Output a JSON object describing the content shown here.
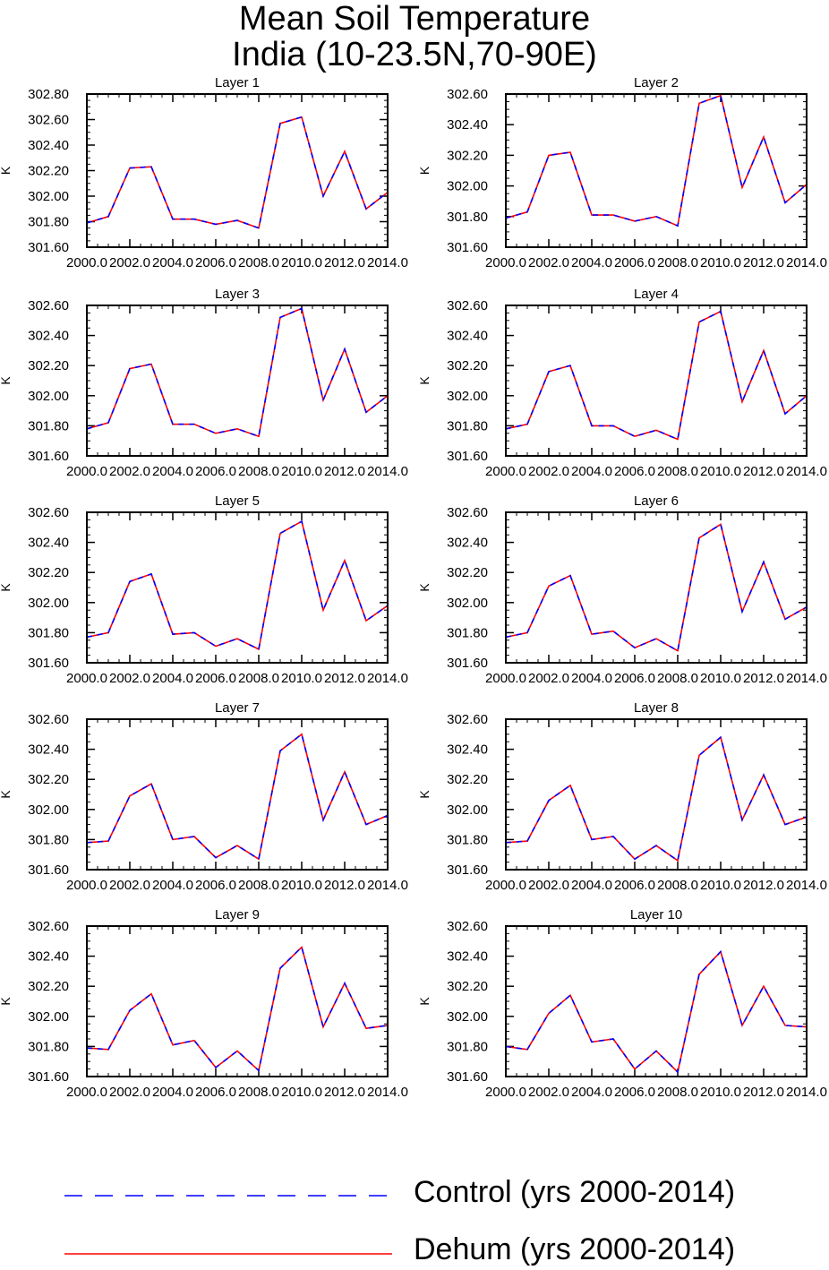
{
  "title": {
    "line1": "Mean Soil Temperature",
    "line2": "India (10-23.5N,70-90E)"
  },
  "legend": {
    "control": {
      "label": "Control (yrs 2000-2014)",
      "color": "#0000ff",
      "style": "dashed"
    },
    "dehum": {
      "label": "Dehum (yrs 2000-2014)",
      "color": "#ff0000",
      "style": "solid"
    }
  },
  "chart_data": [
    {
      "type": "line",
      "title": "Layer 1",
      "ylabel": "K",
      "x": [
        2000,
        2001,
        2002,
        2003,
        2004,
        2005,
        2006,
        2007,
        2008,
        2009,
        2010,
        2011,
        2012,
        2013,
        2014
      ],
      "values": [
        301.79,
        301.84,
        302.22,
        302.23,
        301.82,
        301.82,
        301.78,
        301.81,
        301.75,
        302.57,
        302.62,
        302.0,
        302.35,
        301.9,
        302.03
      ],
      "ylim": [
        301.6,
        302.8
      ],
      "yticks": [
        "301.60",
        "301.80",
        "302.00",
        "302.20",
        "302.40",
        "302.60",
        "302.80"
      ],
      "xticks": [
        "2000.0",
        "2002.0",
        "2004.0",
        "2006.0",
        "2008.0",
        "2010.0",
        "2012.0",
        "2014.0"
      ],
      "series": [
        {
          "name": "Control (yrs 2000-2014)"
        },
        {
          "name": "Dehum (yrs 2000-2014)"
        }
      ]
    },
    {
      "type": "line",
      "title": "Layer 2",
      "ylabel": "K",
      "x": [
        2000,
        2001,
        2002,
        2003,
        2004,
        2005,
        2006,
        2007,
        2008,
        2009,
        2010,
        2011,
        2012,
        2013,
        2014
      ],
      "values": [
        301.79,
        301.83,
        302.2,
        302.22,
        301.81,
        301.81,
        301.77,
        301.8,
        301.74,
        302.54,
        302.59,
        301.99,
        302.32,
        301.89,
        302.01
      ],
      "ylim": [
        301.6,
        302.6
      ],
      "yticks": [
        "301.60",
        "301.80",
        "302.00",
        "302.20",
        "302.40",
        "302.60"
      ],
      "xticks": [
        "2000.0",
        "2002.0",
        "2004.0",
        "2006.0",
        "2008.0",
        "2010.0",
        "2012.0",
        "2014.0"
      ],
      "series": [
        {
          "name": "Control (yrs 2000-2014)"
        },
        {
          "name": "Dehum (yrs 2000-2014)"
        }
      ]
    },
    {
      "type": "line",
      "title": "Layer 3",
      "ylabel": "K",
      "x": [
        2000,
        2001,
        2002,
        2003,
        2004,
        2005,
        2006,
        2007,
        2008,
        2009,
        2010,
        2011,
        2012,
        2013,
        2014
      ],
      "values": [
        301.78,
        301.82,
        302.18,
        302.21,
        301.81,
        301.81,
        301.75,
        301.78,
        301.73,
        302.52,
        302.58,
        301.97,
        302.31,
        301.89,
        302.0
      ],
      "ylim": [
        301.6,
        302.6
      ],
      "yticks": [
        "301.60",
        "301.80",
        "302.00",
        "302.20",
        "302.40",
        "302.60"
      ],
      "xticks": [
        "2000.0",
        "2002.0",
        "2004.0",
        "2006.0",
        "2008.0",
        "2010.0",
        "2012.0",
        "2014.0"
      ],
      "series": [
        {
          "name": "Control (yrs 2000-2014)"
        },
        {
          "name": "Dehum (yrs 2000-2014)"
        }
      ]
    },
    {
      "type": "line",
      "title": "Layer 4",
      "ylabel": "K",
      "x": [
        2000,
        2001,
        2002,
        2003,
        2004,
        2005,
        2006,
        2007,
        2008,
        2009,
        2010,
        2011,
        2012,
        2013,
        2014
      ],
      "values": [
        301.78,
        301.81,
        302.16,
        302.2,
        301.8,
        301.8,
        301.73,
        301.77,
        301.71,
        302.49,
        302.56,
        301.96,
        302.3,
        301.88,
        302.0
      ],
      "ylim": [
        301.6,
        302.6
      ],
      "yticks": [
        "301.60",
        "301.80",
        "302.00",
        "302.20",
        "302.40",
        "302.60"
      ],
      "xticks": [
        "2000.0",
        "2002.0",
        "2004.0",
        "2006.0",
        "2008.0",
        "2010.0",
        "2012.0",
        "2014.0"
      ],
      "series": [
        {
          "name": "Control (yrs 2000-2014)"
        },
        {
          "name": "Dehum (yrs 2000-2014)"
        }
      ]
    },
    {
      "type": "line",
      "title": "Layer 5",
      "ylabel": "K",
      "x": [
        2000,
        2001,
        2002,
        2003,
        2004,
        2005,
        2006,
        2007,
        2008,
        2009,
        2010,
        2011,
        2012,
        2013,
        2014
      ],
      "values": [
        301.77,
        301.8,
        302.14,
        302.19,
        301.79,
        301.8,
        301.71,
        301.76,
        301.69,
        302.46,
        302.54,
        301.95,
        302.28,
        301.88,
        301.98
      ],
      "ylim": [
        301.6,
        302.6
      ],
      "yticks": [
        "301.60",
        "301.80",
        "302.00",
        "302.20",
        "302.40",
        "302.60"
      ],
      "xticks": [
        "2000.0",
        "2002.0",
        "2004.0",
        "2006.0",
        "2008.0",
        "2010.0",
        "2012.0",
        "2014.0"
      ],
      "series": [
        {
          "name": "Control (yrs 2000-2014)"
        },
        {
          "name": "Dehum (yrs 2000-2014)"
        }
      ]
    },
    {
      "type": "line",
      "title": "Layer 6",
      "ylabel": "K",
      "x": [
        2000,
        2001,
        2002,
        2003,
        2004,
        2005,
        2006,
        2007,
        2008,
        2009,
        2010,
        2011,
        2012,
        2013,
        2014
      ],
      "values": [
        301.77,
        301.8,
        302.11,
        302.18,
        301.79,
        301.81,
        301.7,
        301.76,
        301.68,
        302.43,
        302.52,
        301.94,
        302.27,
        301.89,
        301.97
      ],
      "ylim": [
        301.6,
        302.6
      ],
      "yticks": [
        "301.60",
        "301.80",
        "302.00",
        "302.20",
        "302.40",
        "302.60"
      ],
      "xticks": [
        "2000.0",
        "2002.0",
        "2004.0",
        "2006.0",
        "2008.0",
        "2010.0",
        "2012.0",
        "2014.0"
      ],
      "series": [
        {
          "name": "Control (yrs 2000-2014)"
        },
        {
          "name": "Dehum (yrs 2000-2014)"
        }
      ]
    },
    {
      "type": "line",
      "title": "Layer 7",
      "ylabel": "K",
      "x": [
        2000,
        2001,
        2002,
        2003,
        2004,
        2005,
        2006,
        2007,
        2008,
        2009,
        2010,
        2011,
        2012,
        2013,
        2014
      ],
      "values": [
        301.78,
        301.79,
        302.09,
        302.17,
        301.8,
        301.82,
        301.68,
        301.76,
        301.67,
        302.39,
        302.5,
        301.93,
        302.25,
        301.9,
        301.96
      ],
      "ylim": [
        301.6,
        302.6
      ],
      "yticks": [
        "301.60",
        "301.80",
        "302.00",
        "302.20",
        "302.40",
        "302.60"
      ],
      "xticks": [
        "2000.0",
        "2002.0",
        "2004.0",
        "2006.0",
        "2008.0",
        "2010.0",
        "2012.0",
        "2014.0"
      ],
      "series": [
        {
          "name": "Control (yrs 2000-2014)"
        },
        {
          "name": "Dehum (yrs 2000-2014)"
        }
      ]
    },
    {
      "type": "line",
      "title": "Layer 8",
      "ylabel": "K",
      "x": [
        2000,
        2001,
        2002,
        2003,
        2004,
        2005,
        2006,
        2007,
        2008,
        2009,
        2010,
        2011,
        2012,
        2013,
        2014
      ],
      "values": [
        301.78,
        301.79,
        302.06,
        302.16,
        301.8,
        301.82,
        301.67,
        301.76,
        301.66,
        302.36,
        302.48,
        301.93,
        302.23,
        301.9,
        301.95
      ],
      "ylim": [
        301.6,
        302.6
      ],
      "yticks": [
        "301.60",
        "301.80",
        "302.00",
        "302.20",
        "302.40",
        "302.60"
      ],
      "xticks": [
        "2000.0",
        "2002.0",
        "2004.0",
        "2006.0",
        "2008.0",
        "2010.0",
        "2012.0",
        "2014.0"
      ],
      "series": [
        {
          "name": "Control (yrs 2000-2014)"
        },
        {
          "name": "Dehum (yrs 2000-2014)"
        }
      ]
    },
    {
      "type": "line",
      "title": "Layer 9",
      "ylabel": "K",
      "x": [
        2000,
        2001,
        2002,
        2003,
        2004,
        2005,
        2006,
        2007,
        2008,
        2009,
        2010,
        2011,
        2012,
        2013,
        2014
      ],
      "values": [
        301.79,
        301.78,
        302.04,
        302.15,
        301.81,
        301.84,
        301.66,
        301.77,
        301.64,
        302.32,
        302.46,
        301.93,
        302.22,
        301.92,
        301.94
      ],
      "ylim": [
        301.6,
        302.6
      ],
      "yticks": [
        "301.60",
        "301.80",
        "302.00",
        "302.20",
        "302.40",
        "302.60"
      ],
      "xticks": [
        "2000.0",
        "2002.0",
        "2004.0",
        "2006.0",
        "2008.0",
        "2010.0",
        "2012.0",
        "2014.0"
      ],
      "series": [
        {
          "name": "Control (yrs 2000-2014)"
        },
        {
          "name": "Dehum (yrs 2000-2014)"
        }
      ]
    },
    {
      "type": "line",
      "title": "Layer 10",
      "ylabel": "K",
      "x": [
        2000,
        2001,
        2002,
        2003,
        2004,
        2005,
        2006,
        2007,
        2008,
        2009,
        2010,
        2011,
        2012,
        2013,
        2014
      ],
      "values": [
        301.8,
        301.78,
        302.02,
        302.14,
        301.83,
        301.85,
        301.65,
        301.77,
        301.63,
        302.28,
        302.43,
        301.94,
        302.2,
        301.94,
        301.93
      ],
      "ylim": [
        301.6,
        302.6
      ],
      "yticks": [
        "301.60",
        "301.80",
        "302.00",
        "302.20",
        "302.40",
        "302.60"
      ],
      "xticks": [
        "2000.0",
        "2002.0",
        "2004.0",
        "2006.0",
        "2008.0",
        "2010.0",
        "2012.0",
        "2014.0"
      ],
      "series": [
        {
          "name": "Control (yrs 2000-2014)"
        },
        {
          "name": "Dehum (yrs 2000-2014)"
        }
      ]
    }
  ]
}
